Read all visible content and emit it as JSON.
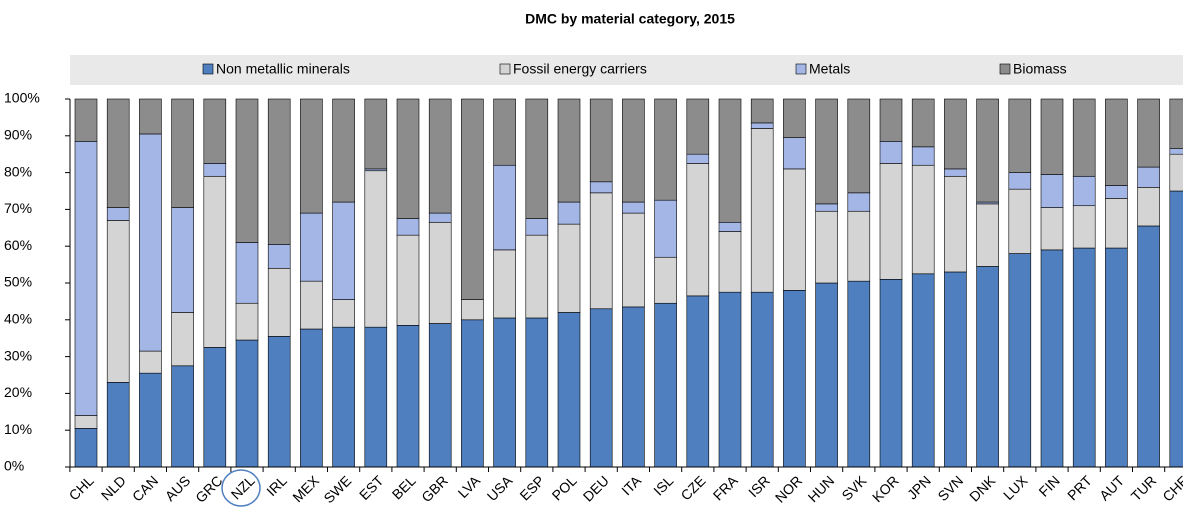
{
  "chart_data": {
    "type": "stacked_bar",
    "title": "DMC by material category, 2015",
    "categories": [
      "CHL",
      "NLD",
      "CAN",
      "AUS",
      "GRC",
      "NZL",
      "IRL",
      "MEX",
      "SWE",
      "EST",
      "BEL",
      "GBR",
      "LVA",
      "USA",
      "ESP",
      "POL",
      "DEU",
      "ITA",
      "ISL",
      "CZE",
      "FRA",
      "ISR",
      "NOR",
      "HUN",
      "SVK",
      "KOR",
      "JPN",
      "SVN",
      "DNK",
      "LUX",
      "FIN",
      "PRT",
      "AUT",
      "TUR",
      "CHE"
    ],
    "series": [
      {
        "name": "Non metallic minerals",
        "color": "#4f7fbf",
        "values": [
          10.5,
          23,
          25.5,
          27.5,
          32.5,
          34.5,
          35.5,
          37.5,
          38,
          38,
          38.5,
          39,
          40,
          40.5,
          40.5,
          42,
          43,
          43.5,
          44.5,
          46.5,
          47.5,
          47.5,
          48,
          50,
          50.5,
          51,
          52.5,
          53,
          54.5,
          58,
          59,
          59.5,
          59.5,
          65.5,
          75
        ]
      },
      {
        "name": "Fossil energy carriers",
        "color": "#d4d4d4",
        "values": [
          3.5,
          44,
          6,
          14.5,
          46.5,
          10,
          18.5,
          13,
          7.5,
          42.5,
          24.5,
          27.5,
          5.5,
          18.5,
          22.5,
          24,
          31.5,
          25.5,
          12.5,
          36,
          16.5,
          44.5,
          33,
          19.5,
          19,
          31.5,
          29.5,
          26,
          17,
          17.5,
          11.5,
          11.5,
          13.5,
          10.5,
          10
        ]
      },
      {
        "name": "Metals",
        "color": "#a3b6e6",
        "values": [
          74.5,
          3.5,
          59,
          28.5,
          3.5,
          16.5,
          6.5,
          18.5,
          26.5,
          0.5,
          4.5,
          2.5,
          0,
          23,
          4.5,
          6,
          3,
          3,
          15.5,
          2.5,
          2.5,
          1.5,
          8.5,
          2,
          5,
          6,
          5,
          2,
          0.5,
          4.5,
          9,
          8,
          3.5,
          5.5,
          1.5
        ]
      },
      {
        "name": "Biomass",
        "color": "#8c8c8c",
        "values": [
          11.5,
          29.5,
          9.5,
          29.5,
          17.5,
          39,
          39.5,
          31,
          28,
          19,
          32.5,
          31,
          54.5,
          18,
          32.5,
          28,
          22.5,
          28,
          27.5,
          15,
          33.5,
          6.5,
          10.5,
          28.5,
          25.5,
          11.5,
          13,
          19,
          28,
          20,
          20.5,
          21,
          23.5,
          18.5,
          13.5
        ]
      }
    ],
    "ylim": [
      0,
      100
    ],
    "yticks": [
      {
        "value": 0,
        "label": "0%"
      },
      {
        "value": 10,
        "label": "10%"
      },
      {
        "value": 20,
        "label": "20%"
      },
      {
        "value": 30,
        "label": "30%"
      },
      {
        "value": 40,
        "label": "40%"
      },
      {
        "value": 50,
        "label": "50%"
      },
      {
        "value": 60,
        "label": "60%"
      },
      {
        "value": 70,
        "label": "70%"
      },
      {
        "value": 80,
        "label": "80%"
      },
      {
        "value": 90,
        "label": "90%"
      },
      {
        "value": 100,
        "label": "100%"
      }
    ],
    "legend": "top"
  }
}
